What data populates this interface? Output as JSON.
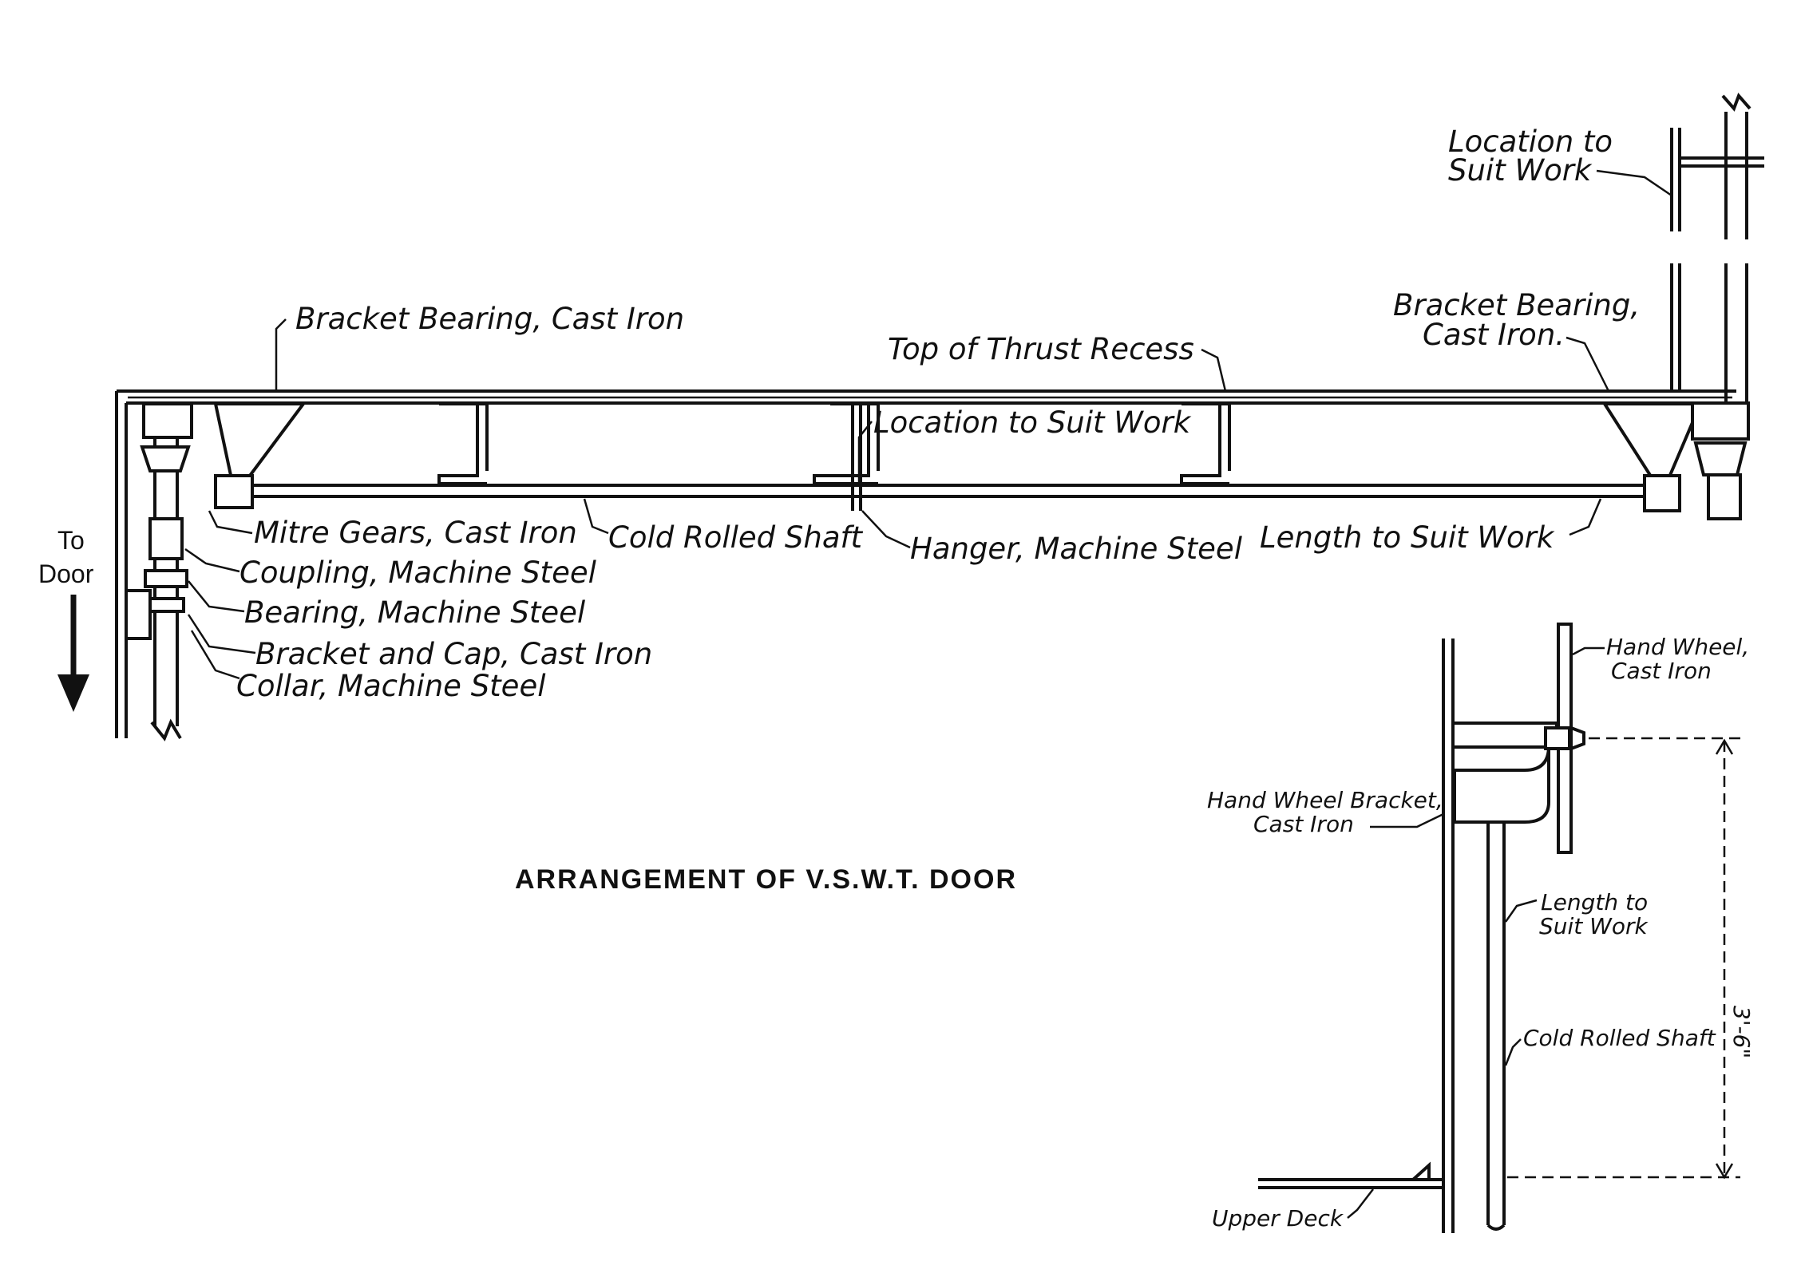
{
  "title": "ARRANGEMENT OF V.S.W.T. DOOR",
  "direction": {
    "line1": "To",
    "line2": "Door"
  },
  "main_labels": {
    "bracket_bearing_left": "Bracket Bearing, Cast Iron",
    "top_thrust_recess": "Top of Thrust Recess",
    "bracket_bearing_right_1": "Bracket Bearing,",
    "bracket_bearing_right_2": "Cast Iron.",
    "location_suit_work_top_1": "Location to",
    "location_suit_work_top_2": "Suit Work",
    "location_suit_work_mid": "Location to Suit Work",
    "mitre_gears": "Mitre Gears, Cast Iron",
    "cold_rolled_shaft": "Cold Rolled Shaft",
    "hanger": "Hanger, Machine Steel",
    "length_suit_work": "Length to Suit Work",
    "coupling": "Coupling, Machine Steel",
    "bearing": "Bearing, Machine Steel",
    "bracket_and_cap": "Bracket and Cap, Cast Iron",
    "collar": "Collar, Machine Steel"
  },
  "detail_labels": {
    "hand_wheel_1": "Hand Wheel,",
    "hand_wheel_2": "Cast Iron",
    "hand_wheel_bracket_1": "Hand Wheel Bracket,",
    "hand_wheel_bracket_2": "Cast Iron",
    "length_to_1": "Length to",
    "length_to_2": "Suit Work",
    "cold_rolled_shaft": "Cold Rolled Shaft",
    "upper_deck": "Upper Deck",
    "dimension": "3'-6\""
  }
}
